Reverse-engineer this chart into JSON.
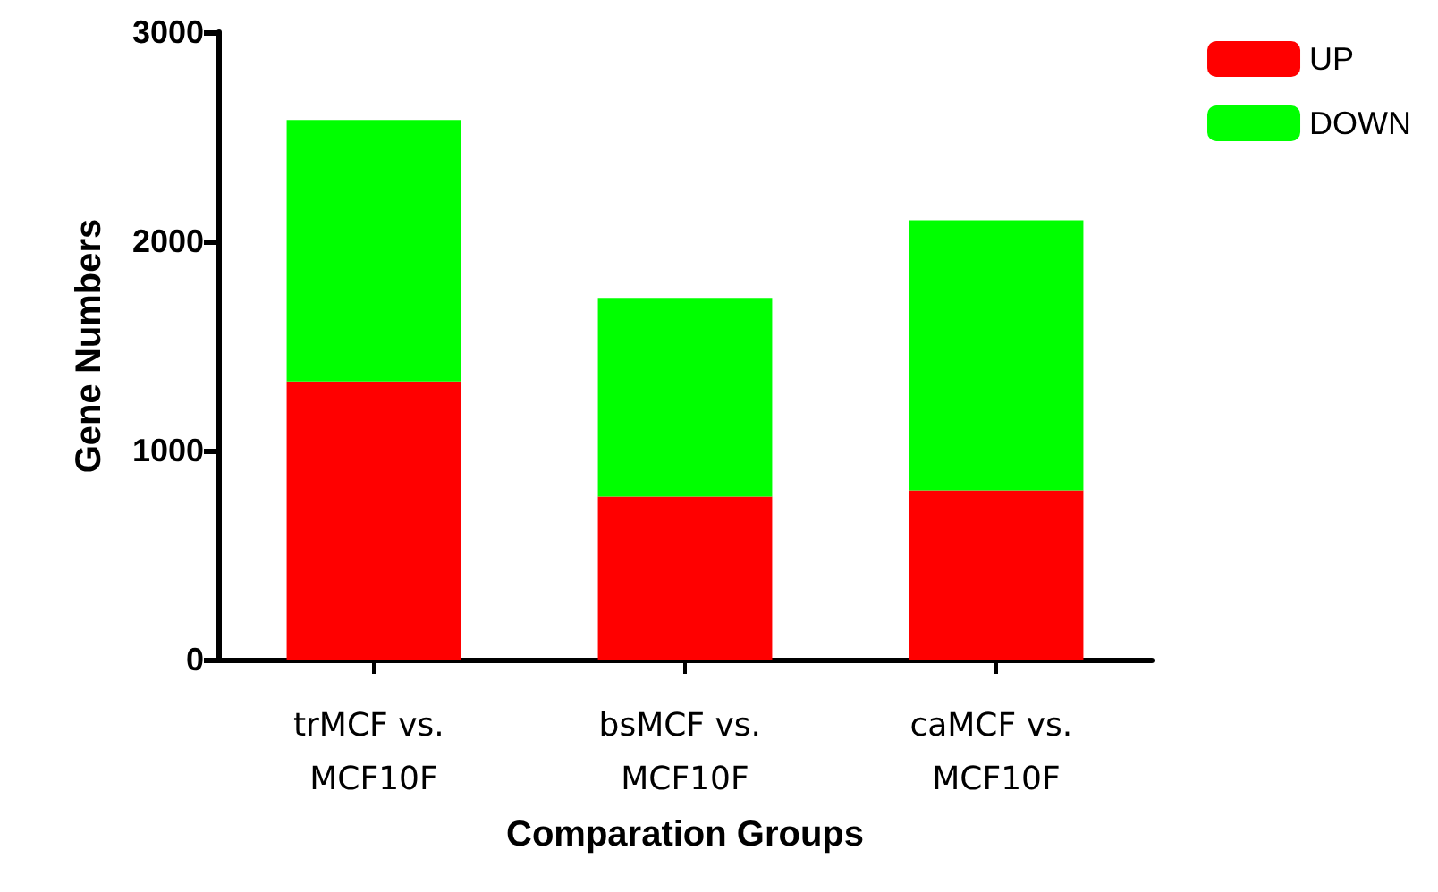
{
  "chart_data": {
    "type": "bar",
    "stacked": true,
    "xlabel": "Comparation Groups",
    "ylabel": "Gene Numbers",
    "categories": [
      "trMCF vs. MCF10F",
      "bsMCF vs. MCF10F",
      "caMCF vs. MCF10F"
    ],
    "series": [
      {
        "name": "UP",
        "color": "#ff0000",
        "values": [
          1330,
          780,
          810
        ]
      },
      {
        "name": "DOWN",
        "color": "#00ff00",
        "values": [
          1250,
          950,
          1290
        ]
      }
    ],
    "ylim": [
      0,
      3000
    ],
    "yticks": [
      0,
      1000,
      2000,
      3000
    ],
    "grid": false,
    "legend": "top right"
  }
}
